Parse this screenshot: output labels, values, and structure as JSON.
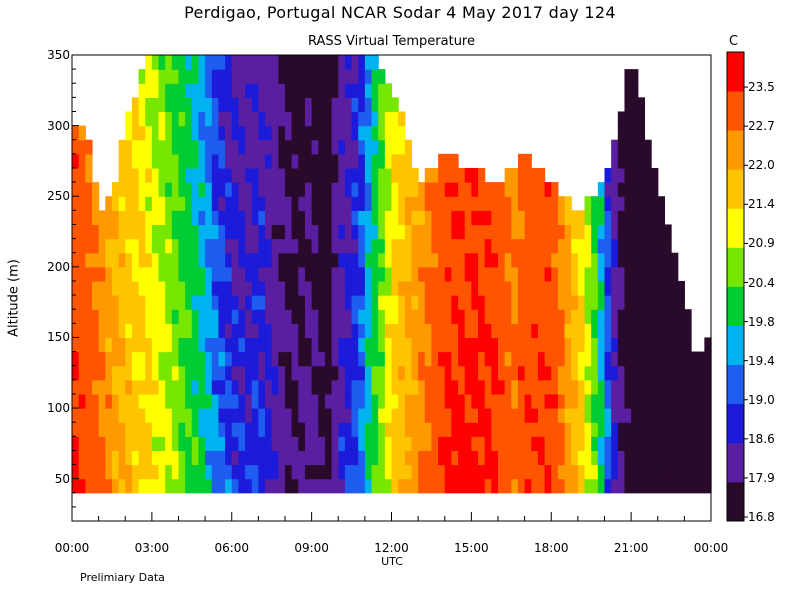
{
  "title": "Perdigao, Portugal  NCAR Sodar    4 May 2017  day 124",
  "subtitle": "RASS Virtual Temperature",
  "footnote": "Prelimiary Data",
  "chart_data": {
    "type": "heatmap",
    "title": "RASS Virtual Temperature",
    "xlabel": "UTC",
    "ylabel": "Altitude (m)",
    "unit": "C",
    "xlim": [
      0,
      24
    ],
    "ylim": [
      20,
      350
    ],
    "x_ticks": [
      "00:00",
      "03:00",
      "06:00",
      "09:00",
      "12:00",
      "15:00",
      "18:00",
      "21:00",
      "00:00"
    ],
    "x_tick_hours": [
      0,
      3,
      6,
      9,
      12,
      15,
      18,
      21,
      24
    ],
    "y_ticks": [
      50,
      100,
      150,
      200,
      250,
      300,
      350
    ],
    "colorbar": {
      "levels": [
        16.8,
        17.9,
        18.6,
        19.0,
        19.4,
        19.8,
        20.4,
        20.9,
        21.4,
        22.0,
        22.7,
        23.5
      ],
      "tick_labels": [
        "16.8",
        "17.9",
        "18.6",
        "19.0",
        "19.4",
        "19.8",
        "20.4",
        "20.9",
        "21.4",
        "22.0",
        "22.7",
        "23.5"
      ],
      "colors": [
        "#2a0a2a",
        "#5a1fa0",
        "#1b1bd9",
        "#1f5cf0",
        "#00b3f0",
        "#00cc33",
        "#77e600",
        "#ffff00",
        "#ffc400",
        "#ff9900",
        "#ff5500",
        "#ff0000"
      ]
    },
    "data_bottom_m": 40,
    "column_top_m": [
      {
        "hour": 0.0,
        "top": 300
      },
      {
        "hour": 0.5,
        "top": 300
      },
      {
        "hour": 1.0,
        "top": 240
      },
      {
        "hour": 1.5,
        "top": 250
      },
      {
        "hour": 2.0,
        "top": 300
      },
      {
        "hour": 2.5,
        "top": 330
      },
      {
        "hour": 3.0,
        "top": 350
      },
      {
        "hour": 11.5,
        "top": 350
      },
      {
        "hour": 12.5,
        "top": 300
      },
      {
        "hour": 13.0,
        "top": 260
      },
      {
        "hour": 14.0,
        "top": 280
      },
      {
        "hour": 16.0,
        "top": 260
      },
      {
        "hour": 17.0,
        "top": 280
      },
      {
        "hour": 18.0,
        "top": 260
      },
      {
        "hour": 19.0,
        "top": 240
      },
      {
        "hour": 20.0,
        "top": 260
      },
      {
        "hour": 20.5,
        "top": 300
      },
      {
        "hour": 21.0,
        "top": 350
      },
      {
        "hour": 22.0,
        "top": 260
      },
      {
        "hour": 23.0,
        "top": 180
      },
      {
        "hour": 23.5,
        "top": 130
      },
      {
        "hour": 24.0,
        "top": 150
      }
    ],
    "time_profile": [
      {
        "hour": 0.0,
        "temp": 23.6
      },
      {
        "hour": 0.5,
        "temp": 23.3
      },
      {
        "hour": 1.0,
        "temp": 22.8
      },
      {
        "hour": 1.5,
        "temp": 22.3
      },
      {
        "hour": 2.0,
        "temp": 22.0
      },
      {
        "hour": 2.5,
        "temp": 21.7
      },
      {
        "hour": 3.0,
        "temp": 21.4
      },
      {
        "hour": 3.5,
        "temp": 21.0
      },
      {
        "hour": 4.0,
        "temp": 20.7
      },
      {
        "hour": 4.5,
        "temp": 20.3
      },
      {
        "hour": 5.0,
        "temp": 19.8
      },
      {
        "hour": 5.5,
        "temp": 19.3
      },
      {
        "hour": 6.0,
        "temp": 19.0
      },
      {
        "hour": 6.5,
        "temp": 18.8
      },
      {
        "hour": 7.0,
        "temp": 19.1
      },
      {
        "hour": 7.5,
        "temp": 18.7
      },
      {
        "hour": 8.0,
        "temp": 18.2
      },
      {
        "hour": 8.5,
        "temp": 17.9
      },
      {
        "hour": 9.0,
        "temp": 18.3
      },
      {
        "hour": 9.5,
        "temp": 17.6
      },
      {
        "hour": 10.0,
        "temp": 18.6
      },
      {
        "hour": 10.5,
        "temp": 19.0
      },
      {
        "hour": 11.0,
        "temp": 19.6
      },
      {
        "hour": 11.5,
        "temp": 20.6
      },
      {
        "hour": 12.0,
        "temp": 21.5
      },
      {
        "hour": 12.5,
        "temp": 22.0
      },
      {
        "hour": 13.0,
        "temp": 22.6
      },
      {
        "hour": 13.5,
        "temp": 23.0
      },
      {
        "hour": 14.0,
        "temp": 23.6
      },
      {
        "hour": 15.0,
        "temp": 23.8
      },
      {
        "hour": 16.0,
        "temp": 23.6
      },
      {
        "hour": 16.5,
        "temp": 22.8
      },
      {
        "hour": 17.0,
        "temp": 23.4
      },
      {
        "hour": 18.0,
        "temp": 23.5
      },
      {
        "hour": 18.5,
        "temp": 22.6
      },
      {
        "hour": 19.0,
        "temp": 21.8
      },
      {
        "hour": 19.5,
        "temp": 20.9
      },
      {
        "hour": 20.0,
        "temp": 19.6
      },
      {
        "hour": 20.5,
        "temp": 18.3
      },
      {
        "hour": 21.0,
        "temp": 17.4
      },
      {
        "hour": 22.0,
        "temp": 17.0
      },
      {
        "hour": 23.0,
        "temp": 17.2
      },
      {
        "hour": 24.0,
        "temp": 17.3
      }
    ]
  }
}
